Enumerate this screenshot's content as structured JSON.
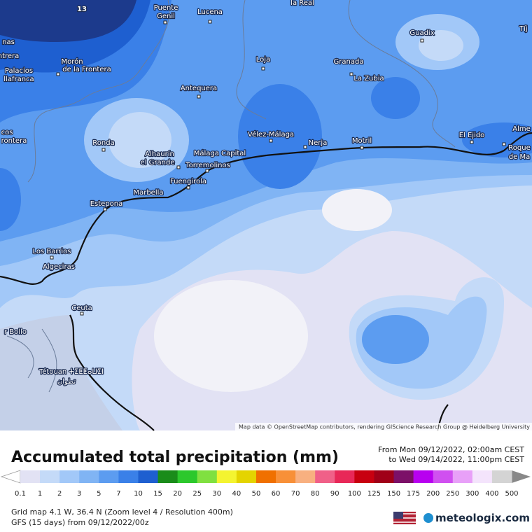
{
  "map_label": "13",
  "places": [
    "Puente",
    "Genil",
    "Lucena",
    "la Real",
    "Granada",
    "La Zubia",
    "Loja",
    "Guadix",
    "Tíj",
    "nas",
    "ntrera",
    "Palacios",
    "llafranca",
    "Morón",
    "de la Frontera",
    "Antequera",
    "Ronda",
    "cos",
    "rontera",
    "Vélez-Málaga",
    "Nerja",
    "Motril",
    "El Ejido",
    "Alme",
    "Roque",
    "de Ma",
    "Alhaurín",
    "el Grande",
    "Málaga Capital",
    "Torremolinos",
    "Fuengirola",
    "Marbella",
    "Estepona",
    "Los Barrios",
    "Algeciras",
    "Ceuta",
    "r Bollo",
    "Tétouan ⵜⵉⵟⵟⴰⵡⵉⵏ",
    "تطوان"
  ],
  "attribution": "Map data © OpenStreetMap contributors, rendering GIScience Research Group @ Heidelberg University",
  "title": "Accumulated total precipitation (mm)",
  "period_from": "From Mon 09/12/2022, 02:00am CEST",
  "period_to": "to Wed 09/14/2022, 11:00pm CEST",
  "legend": {
    "labels": [
      0.1,
      1,
      2,
      3,
      5,
      7,
      10,
      15,
      20,
      25,
      30,
      40,
      50,
      60,
      70,
      80,
      90,
      100,
      125,
      150,
      175,
      200,
      250,
      300,
      400,
      500
    ],
    "colors": [
      "#e2e2f4",
      "#c4daf8",
      "#a2c8f8",
      "#80b4f4",
      "#5c9cf0",
      "#3a80e8",
      "#1e5fd0",
      "#1a8c1a",
      "#2cc82c",
      "#80e040",
      "#f4f430",
      "#e4d400",
      "#f07000",
      "#f89038",
      "#f8b080",
      "#f06088",
      "#e82858",
      "#c80010",
      "#a00018",
      "#7c1068",
      "#b800f0",
      "#d050f0",
      "#e8a0f8",
      "#f4e4fc",
      "#d4d4d4"
    ]
  },
  "grid_info": "Grid map 4.1 W, 36.4 N (Zoom level 4 / Resolution 400m)",
  "model_info": "GFS (15 days) from 09/12/2022/00z",
  "brand": "meteologix.com"
}
